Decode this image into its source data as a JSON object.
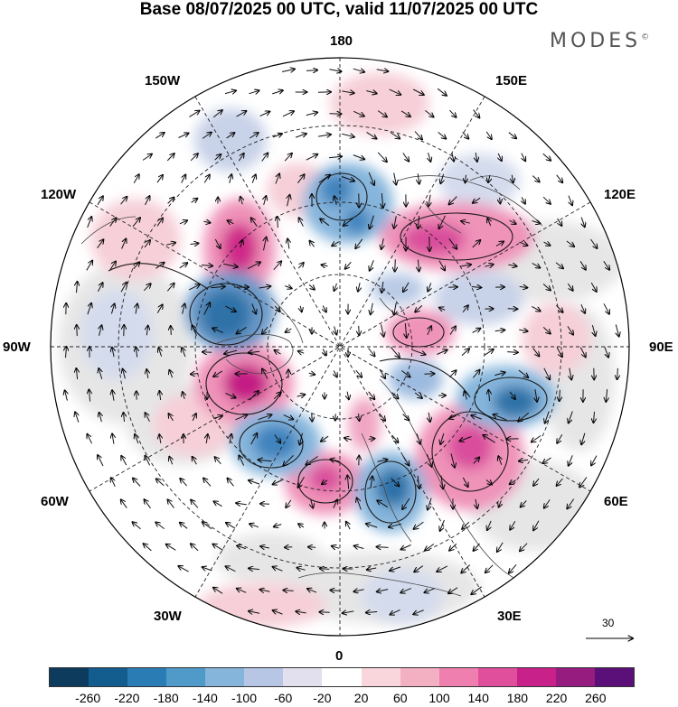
{
  "title": "Base 08/07/2025 00 UTC, valid 11/07/2025 00 UTC",
  "brand": "MODES",
  "brand_mark": "©",
  "longitude_labels": {
    "top": "180",
    "top_left": "150W",
    "top_right": "150E",
    "upper_left": "120W",
    "upper_right": "120E",
    "left": "90W",
    "right": "90E",
    "lower_left": "60W",
    "lower_right": "60E",
    "bottom_left": "30W",
    "bottom_right": "30E",
    "bottom": "0"
  },
  "reference_vector": {
    "label": "30"
  },
  "colorbar": {
    "colors": [
      "#0d3b5e",
      "#135d8e",
      "#2a7cb5",
      "#4f9ac9",
      "#86b5dc",
      "#b7c6e4",
      "#e2e0ef",
      "#ffffff",
      "#f8d6dc",
      "#f4b0c3",
      "#ee7fae",
      "#e04f9c",
      "#c8218a",
      "#961c80",
      "#5b0f78"
    ],
    "ticks": [
      "-260",
      "-220",
      "-180",
      "-140",
      "-100",
      "-60",
      "-20",
      "20",
      "60",
      "100",
      "140",
      "180",
      "220",
      "260"
    ]
  },
  "anomaly_colors": {
    "neg_strong": "#2b6fa6",
    "neg_mid": "#6b99c8",
    "neg_weak": "#c0cde6",
    "pos_weak": "#f6cfd8",
    "pos_mid": "#ef93b9",
    "pos_strong": "#cf2a89",
    "land_mask": "#e8e8e8"
  }
}
